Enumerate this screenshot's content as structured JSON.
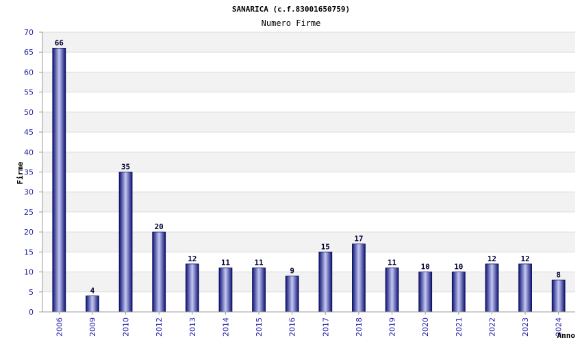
{
  "chart_data": {
    "type": "bar",
    "title": "SANARICA (c.f.83001650759)",
    "subtitle": "Numero Firme",
    "xlabel": "Anno",
    "ylabel": "Firme",
    "categories": [
      "2006",
      "2009",
      "2010",
      "2012",
      "2013",
      "2014",
      "2015",
      "2016",
      "2017",
      "2018",
      "2019",
      "2020",
      "2021",
      "2022",
      "2023",
      "2024"
    ],
    "values": [
      66,
      4,
      35,
      20,
      12,
      11,
      11,
      9,
      15,
      17,
      11,
      10,
      10,
      12,
      12,
      8
    ],
    "ylim": [
      0,
      70
    ],
    "yticks": [
      0,
      5,
      10,
      15,
      20,
      25,
      30,
      35,
      40,
      45,
      50,
      55,
      60,
      65,
      70
    ],
    "grid": true,
    "bar_color": "#1a1f8c",
    "axis_tick_color": "#1a1aa6"
  }
}
